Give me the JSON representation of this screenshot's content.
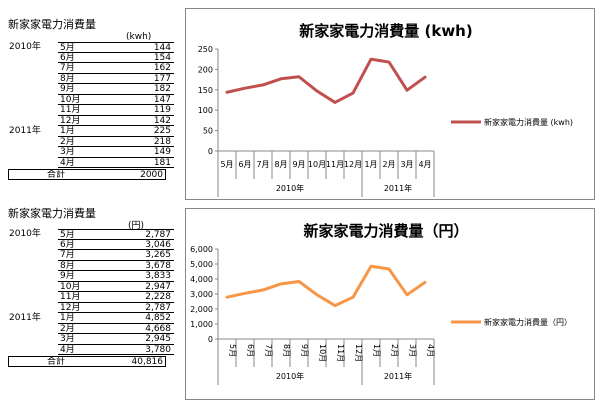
{
  "table_kwh": {
    "title": "新家家電力消費量",
    "unit": "(kwh)",
    "rows": [
      {
        "year": "2010年",
        "month": "5月",
        "value": "144"
      },
      {
        "year": "",
        "month": "6月",
        "value": "154"
      },
      {
        "year": "",
        "month": "7月",
        "value": "162"
      },
      {
        "year": "",
        "month": "8月",
        "value": "177"
      },
      {
        "year": "",
        "month": "9月",
        "value": "182"
      },
      {
        "year": "",
        "month": "10月",
        "value": "147"
      },
      {
        "year": "",
        "month": "11月",
        "value": "119"
      },
      {
        "year": "",
        "month": "12月",
        "value": "142"
      },
      {
        "year": "2011年",
        "month": "1月",
        "value": "225"
      },
      {
        "year": "",
        "month": "2月",
        "value": "218"
      },
      {
        "year": "",
        "month": "3月",
        "value": "149"
      },
      {
        "year": "",
        "month": "4月",
        "value": "181"
      }
    ],
    "total_label": "合計",
    "total_value": "2000"
  },
  "table_yen": {
    "title": "新家家電力消費量",
    "unit": "(円)",
    "rows": [
      {
        "year": "2010年",
        "month": "5月",
        "value": "2,787"
      },
      {
        "year": "",
        "month": "6月",
        "value": "3,046"
      },
      {
        "year": "",
        "month": "7月",
        "value": "3,265"
      },
      {
        "year": "",
        "month": "8月",
        "value": "3,678"
      },
      {
        "year": "",
        "month": "9月",
        "value": "3,833"
      },
      {
        "year": "",
        "month": "10月",
        "value": "2,947"
      },
      {
        "year": "",
        "month": "11月",
        "value": "2,228"
      },
      {
        "year": "",
        "month": "12月",
        "value": "2,787"
      },
      {
        "year": "2011年",
        "month": "1月",
        "value": "4,852"
      },
      {
        "year": "",
        "month": "2月",
        "value": "4,668"
      },
      {
        "year": "",
        "month": "3月",
        "value": "2,945"
      },
      {
        "year": "",
        "month": "4月",
        "value": "3,780"
      }
    ],
    "total_label": "合計",
    "total_value": "40,816"
  },
  "chart_data": [
    {
      "type": "line",
      "title": "新家家電力消費量 (kwh)",
      "categories": [
        "5月",
        "6月",
        "7月",
        "8月",
        "9月",
        "10月",
        "11月",
        "12月",
        "1月",
        "2月",
        "3月",
        "4月"
      ],
      "groups": [
        {
          "label": "2010年",
          "from": 0,
          "to": 7
        },
        {
          "label": "2011年",
          "from": 8,
          "to": 11
        }
      ],
      "series": [
        {
          "name": "新家家電力消費量 (kwh)",
          "values": [
            144,
            154,
            162,
            177,
            182,
            147,
            119,
            142,
            225,
            218,
            149,
            181
          ],
          "color": "#c0504d"
        }
      ],
      "ylim": [
        0,
        250
      ],
      "yticks": [
        0,
        50,
        100,
        150,
        200,
        250
      ],
      "ytick_labels": [
        "0",
        "50",
        "100",
        "150",
        "200",
        "250"
      ],
      "grid": false,
      "legend": "right",
      "rotate_xlabels": false
    },
    {
      "type": "line",
      "title": "新家家電力消費量（円）",
      "categories": [
        "5月",
        "6月",
        "7月",
        "8月",
        "9月",
        "10月",
        "11月",
        "12月",
        "1月",
        "2月",
        "3月",
        "4月"
      ],
      "groups": [
        {
          "label": "2010年",
          "from": 0,
          "to": 7
        },
        {
          "label": "2011年",
          "from": 8,
          "to": 11
        }
      ],
      "series": [
        {
          "name": "新家家電力消費量（円）",
          "values": [
            2787,
            3046,
            3265,
            3678,
            3833,
            2947,
            2228,
            2787,
            4852,
            4668,
            2945,
            3780
          ],
          "color": "#f79646"
        }
      ],
      "ylim": [
        0,
        6000
      ],
      "yticks": [
        0,
        1000,
        2000,
        3000,
        4000,
        5000,
        6000
      ],
      "ytick_labels": [
        "0",
        "1,000",
        "2,000",
        "3,000",
        "4,000",
        "5,000",
        "6,000"
      ],
      "grid": false,
      "legend": "right",
      "rotate_xlabels": true
    }
  ]
}
